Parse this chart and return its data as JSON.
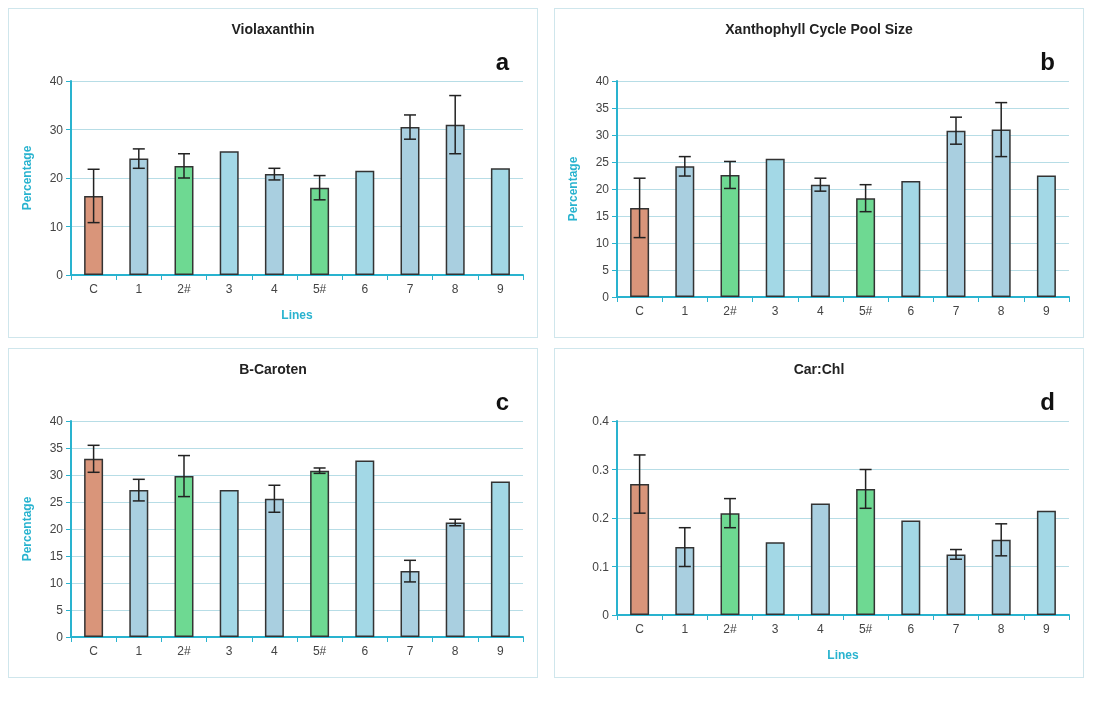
{
  "chart_data": [
    {
      "type": "bar",
      "title": "Violaxanthin",
      "xlabel": "Lines",
      "ylabel": "Percentage",
      "annotations": [
        "a"
      ],
      "categories": [
        "C",
        "1",
        "2#",
        "3",
        "4",
        "5#",
        "6",
        "7",
        "8",
        "9"
      ],
      "values": [
        16.3,
        24,
        22.5,
        25.5,
        20.8,
        18,
        21.5,
        30.5,
        31,
        22
      ],
      "errors": [
        5.5,
        2,
        2.5,
        null,
        1.2,
        2.5,
        null,
        2.5,
        6,
        null
      ],
      "colors": [
        "#d9957a",
        "#a9cfe0",
        "#6ed992",
        "#a3d8e6",
        "#a9cfe0",
        "#6ed992",
        "#a3d8e6",
        "#a9cfe0",
        "#a9cfe0",
        "#a3d8e6"
      ],
      "ylim": [
        0,
        40
      ],
      "yticks": [
        0,
        10,
        20,
        30,
        40
      ],
      "grid": "y"
    },
    {
      "type": "bar",
      "title": "Xanthophyll Cycle Pool Size",
      "ylabel": "Percentage",
      "annotations": [
        "b"
      ],
      "categories": [
        "C",
        "1",
        "2#",
        "3",
        "4",
        "5#",
        "6",
        "7",
        "8",
        "9"
      ],
      "values": [
        16.5,
        24.2,
        22.6,
        25.6,
        20.8,
        18.3,
        21.5,
        30.8,
        31,
        22.5
      ],
      "errors": [
        5.5,
        1.8,
        2.5,
        null,
        1.2,
        2.5,
        null,
        2.5,
        5,
        null
      ],
      "colors": [
        "#d9957a",
        "#a9cfe0",
        "#6ed992",
        "#a3d8e6",
        "#a9cfe0",
        "#6ed992",
        "#a3d8e6",
        "#a9cfe0",
        "#a9cfe0",
        "#a3d8e6"
      ],
      "ylim": [
        0,
        40
      ],
      "yticks": [
        0,
        5,
        10,
        15,
        20,
        25,
        30,
        35,
        40
      ],
      "grid": "y"
    },
    {
      "type": "bar",
      "title": "B-Caroten",
      "ylabel": "Percentage",
      "annotations": [
        "c"
      ],
      "categories": [
        "C",
        "1",
        "2#",
        "3",
        "4",
        "5#",
        "6",
        "7",
        "8",
        "9"
      ],
      "values": [
        33,
        27.2,
        29.8,
        27.2,
        25.6,
        30.8,
        32.7,
        12.2,
        21.2,
        28.8
      ],
      "errors": [
        2.5,
        2,
        3.8,
        null,
        2.5,
        0.5,
        null,
        2,
        0.6,
        null
      ],
      "colors": [
        "#d9957a",
        "#a9cfe0",
        "#6ed992",
        "#a3d8e6",
        "#a9cfe0",
        "#6ed992",
        "#a3d8e6",
        "#a9cfe0",
        "#a9cfe0",
        "#a3d8e6"
      ],
      "ylim": [
        0,
        40
      ],
      "yticks": [
        0,
        5,
        10,
        15,
        20,
        25,
        30,
        35,
        40
      ],
      "grid": "y"
    },
    {
      "type": "bar",
      "title": "Car:Chl",
      "xlabel": "Lines",
      "annotations": [
        "d"
      ],
      "categories": [
        "C",
        "1",
        "2#",
        "3",
        "4",
        "5#",
        "6",
        "7",
        "8",
        "9"
      ],
      "values": [
        0.27,
        0.14,
        0.21,
        0.15,
        0.23,
        0.26,
        0.195,
        0.125,
        0.155,
        0.215
      ],
      "errors": [
        0.06,
        0.04,
        0.03,
        null,
        null,
        0.04,
        null,
        0.01,
        0.033,
        null
      ],
      "colors": [
        "#d9957a",
        "#a9cfe0",
        "#6ed992",
        "#a3d8e6",
        "#a9cfe0",
        "#6ed992",
        "#a3d8e6",
        "#a9cfe0",
        "#a9cfe0",
        "#a3d8e6"
      ],
      "ylim": [
        0,
        0.4
      ],
      "yticks": [
        0,
        0.1,
        0.2,
        0.3,
        0.4
      ],
      "grid": "y"
    }
  ]
}
